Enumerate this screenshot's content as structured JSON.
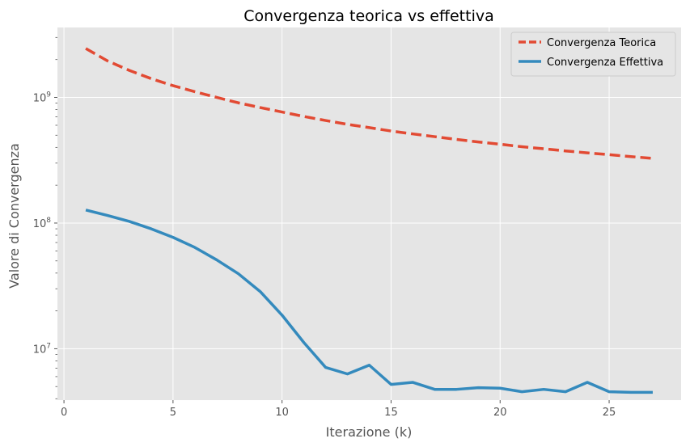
{
  "chart_data": {
    "type": "line",
    "title": "Convergenza teorica vs effettiva",
    "xlabel": "Iterazione (k)",
    "ylabel": "Valore di Convergenza",
    "y_scale": "log",
    "xlim": [
      -0.3,
      28.3
    ],
    "ylim": [
      3900000.0,
      3600000000.0
    ],
    "x_ticks": [
      0,
      5,
      10,
      15,
      20,
      25
    ],
    "y_ticks": [
      {
        "value": 10000000,
        "base": "10",
        "exp": "7"
      },
      {
        "value": 100000000,
        "base": "10",
        "exp": "8"
      },
      {
        "value": 1000000000,
        "base": "10",
        "exp": "9"
      }
    ],
    "grid": true,
    "legend_position": "top-right",
    "x": [
      1,
      2,
      3,
      4,
      5,
      6,
      7,
      8,
      9,
      10,
      11,
      12,
      13,
      14,
      15,
      16,
      17,
      18,
      19,
      20,
      21,
      22,
      23,
      24,
      25,
      26,
      27
    ],
    "series": [
      {
        "name": "Convergenza Teorica",
        "color": "#e24a33",
        "style": "dashed",
        "values": [
          2450000000,
          1950000000,
          1640000000,
          1410000000,
          1240000000,
          1110000000,
          1000000000,
          905000000,
          830000000,
          765000000,
          705000000,
          655000000,
          610000000,
          575000000,
          540000000,
          512000000,
          487000000,
          463000000,
          442000000,
          424000000,
          405000000,
          390000000,
          375000000,
          362000000,
          350000000,
          338000000,
          327000000
        ]
      },
      {
        "name": "Convergenza Effettiva",
        "color": "#348abd",
        "style": "solid",
        "values": [
          127000000,
          115000000,
          103000000,
          90000000,
          77000000,
          64000000,
          51000000,
          39500000,
          28500000,
          18500000,
          11200000,
          7100000,
          6300000,
          7400000,
          5200000,
          5400000,
          4750000,
          4750000,
          4900000,
          4850000,
          4550000,
          4750000,
          4550000,
          5400000,
          4550000,
          4500000,
          4500000
        ]
      }
    ]
  }
}
